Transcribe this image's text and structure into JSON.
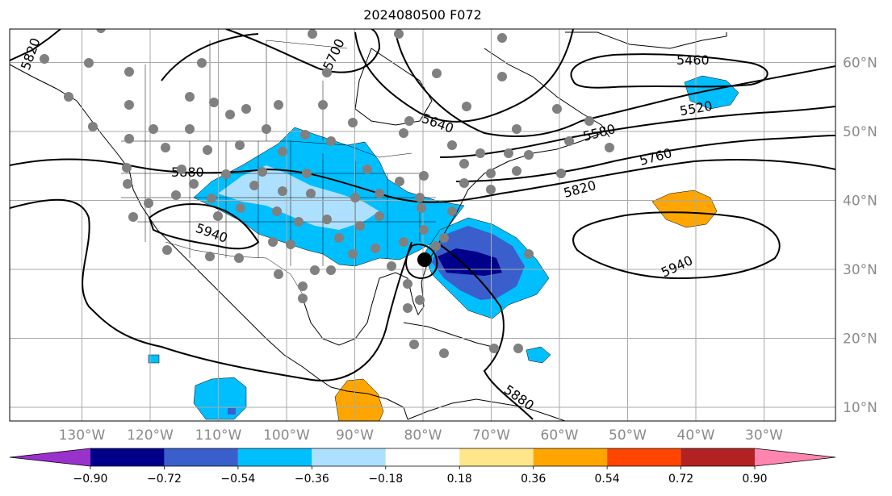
{
  "title": "2024080500 F072",
  "lat_axis": [
    {
      "label": "60°N",
      "lat": 60
    },
    {
      "label": "50°N",
      "lat": 50
    },
    {
      "label": "40°N",
      "lat": 40
    },
    {
      "label": "30°N",
      "lat": 30
    },
    {
      "label": "20°N",
      "lat": 20
    },
    {
      "label": "10°N",
      "lat": 10
    }
  ],
  "lon_axis": [
    {
      "label": "130°W",
      "lon": -130
    },
    {
      "label": "120°W",
      "lon": -120
    },
    {
      "label": "110°W",
      "lon": -110
    },
    {
      "label": "100°W",
      "lon": -100
    },
    {
      "label": "90°W",
      "lon": -90
    },
    {
      "label": "80°W",
      "lon": -80
    },
    {
      "label": "70°W",
      "lon": -70
    },
    {
      "label": "60°W",
      "lon": -60
    },
    {
      "label": "50°W",
      "lon": -50
    },
    {
      "label": "40°W",
      "lon": -40
    },
    {
      "label": "30°W",
      "lon": -30
    }
  ],
  "contour_labels": [
    "5820",
    "5700",
    "5640",
    "5580",
    "5520",
    "5460",
    "5760",
    "5820",
    "5880",
    "5940",
    "5940",
    "5880"
  ],
  "colorbar": {
    "colors": [
      "#9932CC",
      "#00008B",
      "#3A5FCD",
      "#00BFFF",
      "#ADE0FF",
      "#FFFFFF",
      "#FFE68A",
      "#FFA500",
      "#FF4500",
      "#B22222",
      "#FF85B0"
    ],
    "ticks": [
      "−0.90",
      "−0.72",
      "−0.54",
      "−0.36",
      "−0.18",
      "0.18",
      "0.36",
      "0.54",
      "0.72",
      "0.90"
    ]
  },
  "map_colors": {
    "grid": "#aaaaaa",
    "station": "#808080",
    "contour": "#000000"
  }
}
